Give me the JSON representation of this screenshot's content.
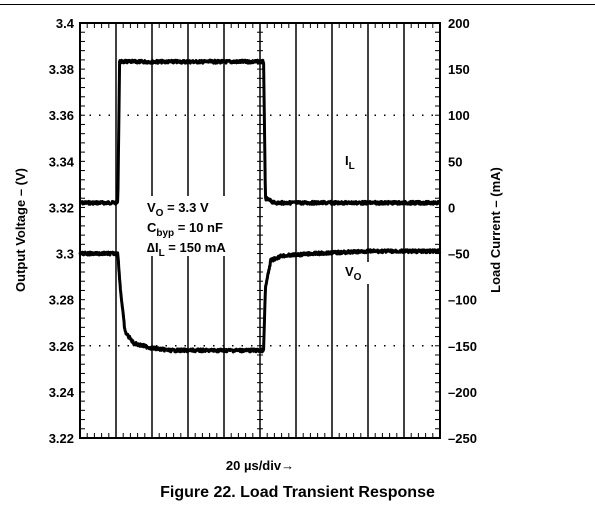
{
  "caption": "Figure 22. Load Transient Response",
  "chart_data": {
    "type": "line",
    "title": "",
    "xlabel": "20 µs/div→",
    "ylabel_left": "Output Voltage – (V)",
    "ylabel_right": "Load Current – (mA)",
    "x_divisions": 10,
    "y_divisions": 9,
    "ylim_left": [
      3.22,
      3.4
    ],
    "ylim_right": [
      -250,
      200
    ],
    "yticks_left": [
      "3.4",
      "3.38",
      "3.36",
      "3.34",
      "3.32",
      "3.3",
      "3.28",
      "3.26",
      "3.24",
      "3.22"
    ],
    "yticks_right": [
      "200",
      "150",
      "100",
      "50",
      "0",
      "–50",
      "–100",
      "–150",
      "–200",
      "–250"
    ],
    "dashed_reference_rows": [
      7,
      2
    ],
    "annotations": {
      "vo_label": "V",
      "vo_sub": "O",
      "vo_value": " = 3.3 V",
      "cbyp_label": "C",
      "cbyp_sub": "byp",
      "cbyp_value": " = 10 nF",
      "dil_label": "∆I",
      "dil_sub": "L",
      "dil_value": " = 150 mA",
      "il_trace_label": "I",
      "il_trace_sub": "L",
      "vo_trace_label": "V",
      "vo_trace_sub": "O"
    },
    "series": [
      {
        "name": "IL",
        "axis": "right",
        "x_div": [
          0,
          1.05,
          1.1,
          5.1,
          5.15,
          5.4,
          10
        ],
        "values": [
          5,
          5,
          158,
          158,
          10,
          5,
          5
        ]
      },
      {
        "name": "VO",
        "axis": "left",
        "x_div": [
          0,
          1.05,
          1.12,
          1.25,
          1.5,
          2.0,
          2.5,
          5.1,
          5.15,
          5.3,
          5.6,
          6.5,
          8,
          10
        ],
        "values": [
          3.3,
          3.3,
          3.285,
          3.266,
          3.261,
          3.259,
          3.258,
          3.258,
          3.285,
          3.297,
          3.299,
          3.3,
          3.301,
          3.301
        ]
      }
    ]
  }
}
